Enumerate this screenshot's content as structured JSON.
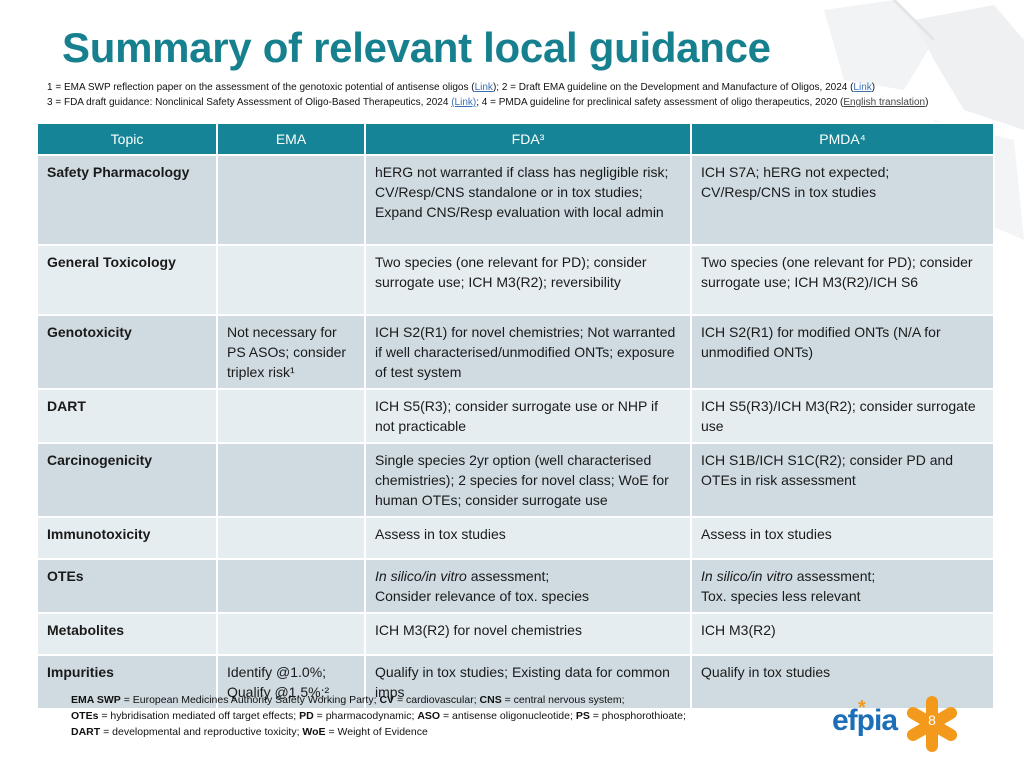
{
  "title": "Summary of relevant local guidance",
  "refs": {
    "line1_a": "1 = EMA SWP reflection paper on the assessment of the genotoxic potential of antisense oligos (",
    "line1_link1": "Link",
    "line1_b": "); 2 = Draft EMA guideline on the Development and Manufacture of Oligos, 2024 (",
    "line1_link2": "Link",
    "line1_c": ")",
    "line2_a": "3 = FDA draft guidance: Nonclinical Safety Assessment of Oligo-Based Therapeutics, 2024 ",
    "line2_link1": "(Link)",
    "line2_b": "; 4 = PMDA guideline for preclinical safety assessment of oligo therapeutics, 2020 (",
    "line2_link2": "English translation",
    "line2_c": ")"
  },
  "table": {
    "headers": [
      "Topic",
      "EMA",
      "FDA³",
      "PMDA⁴"
    ],
    "rows": [
      {
        "topic": "Safety Pharmacology",
        "ema": "",
        "fda_lines": [
          "hERG not warranted if class has negligible risk;",
          "CV/Resp/CNS standalone or in tox studies;",
          "Expand CNS/Resp evaluation with local admin"
        ],
        "pmda_lines": [
          "ICH S7A; hERG not expected;",
          "CV/Resp/CNS in tox studies"
        ]
      },
      {
        "topic": "General Toxicology",
        "ema": "",
        "fda": "Two species (one relevant for PD); consider surrogate use; ICH M3(R2); reversibility",
        "pmda": "Two species (one relevant for PD); consider surrogate use; ICH M3(R2)/ICH S6"
      },
      {
        "topic": "Genotoxicity",
        "ema": "Not necessary for PS ASOs; consider triplex risk¹",
        "fda": "ICH S2(R1) for novel chemistries; Not warranted if well characterised/unmodified ONTs; exposure of test system",
        "pmda": "ICH S2(R1) for modified ONTs (N/A for unmodified ONTs)"
      },
      {
        "topic": "DART",
        "ema": "",
        "fda": "ICH S5(R3); consider surrogate use or NHP if not practicable",
        "pmda": "ICH S5(R3)/ICH M3(R2); consider surrogate use"
      },
      {
        "topic": "Carcinogenicity",
        "ema": "",
        "fda": "Single species 2yr option (well characterised chemistries); 2 species for novel class; WoE for human OTEs; consider surrogate use",
        "pmda": "ICH S1B/ICH S1C(R2); consider PD and OTEs in risk assessment"
      },
      {
        "topic": "Immunotoxicity",
        "ema": "",
        "fda": "Assess in tox studies",
        "pmda": "Assess in tox studies"
      },
      {
        "topic": "OTEs",
        "ema": "",
        "fda_italic": "In silico/in vitro",
        "fda_rest": " assessment;",
        "fda_line2": "Consider relevance of tox. species",
        "pmda_italic": "In silico/in vitro",
        "pmda_rest": " assessment;",
        "pmda_line2": "Tox. species less relevant"
      },
      {
        "topic": "Metabolites",
        "ema": "",
        "fda": "ICH M3(R2) for novel chemistries",
        "pmda": "ICH M3(R2)"
      },
      {
        "topic": "Impurities",
        "ema_lines": [
          "Identify @1.0%;",
          "Qualify @1.5%;²"
        ],
        "fda": "Qualify in tox studies; Existing data for common imps",
        "pmda": "Qualify in tox studies"
      }
    ]
  },
  "footnote": {
    "l1_b1": "EMA SWP",
    "l1_t1": " = European Medicines Authority Safety Working Party; ",
    "l1_b2": "CV",
    "l1_t2": " = cardiovascular; ",
    "l1_b3": "CNS",
    "l1_t3": " = central nervous system;",
    "l2_b1": "OTEs",
    "l2_t1": " = hybridisation mediated off target effects; ",
    "l2_b2": "PD",
    "l2_t2": " = pharmacodynamic; ",
    "l2_b3": "ASO",
    "l2_t3": " = antisense oligonucleotide; ",
    "l2_b4": "PS",
    "l2_t4": " = phosphorothioate;",
    "l3_b1": "DART",
    "l3_t1": " = developmental and reproductive toxicity; ",
    "l3_b2": "WoE",
    "l3_t2": " = Weight of Evidence"
  },
  "logo": {
    "text": "efpia",
    "star": "*"
  },
  "page_number": "8",
  "colors": {
    "accent": "#16808f",
    "header_bg": "#148496",
    "row_odd": "#cfdbe1",
    "row_even": "#e6edf0",
    "logo_blue": "#1c6fb6",
    "logo_orange": "#f39a1c"
  }
}
